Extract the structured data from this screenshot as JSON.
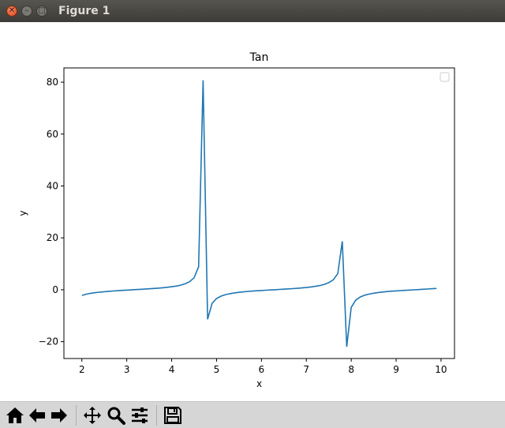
{
  "window": {
    "title": "Figure 1"
  },
  "toolbar": {
    "tools": [
      {
        "name": "home-icon"
      },
      {
        "name": "back-icon"
      },
      {
        "name": "forward-icon"
      },
      {
        "name": "pan-icon"
      },
      {
        "name": "zoom-icon"
      },
      {
        "name": "subplots-icon"
      },
      {
        "name": "save-icon"
      }
    ]
  },
  "chart_data": {
    "type": "line",
    "title": "Tan",
    "xlabel": "x",
    "ylabel": "y",
    "xlim": [
      1.6,
      10.3
    ],
    "ylim": [
      -26.5,
      85.5
    ],
    "xticks": [
      2,
      3,
      4,
      5,
      6,
      7,
      8,
      9,
      10
    ],
    "yticks": [
      -20,
      0,
      20,
      40,
      60,
      80
    ],
    "xtick_labels": [
      "2",
      "3",
      "4",
      "5",
      "6",
      "7",
      "8",
      "9",
      "10"
    ],
    "ytick_labels": [
      "−20",
      "0",
      "20",
      "40",
      "60",
      "80"
    ],
    "grid": false,
    "legend": "top-right (empty)",
    "series": [
      {
        "color": "#1f77b4",
        "x": [
          2.0,
          2.1,
          2.2,
          2.3,
          2.4,
          2.5,
          2.6,
          2.7,
          2.8,
          2.9,
          3.0,
          3.1,
          3.2,
          3.3,
          3.4,
          3.5,
          3.6,
          3.7,
          3.8,
          3.9,
          4.0,
          4.1,
          4.2,
          4.3,
          4.4,
          4.5,
          4.6,
          4.7,
          4.8,
          4.9,
          5.0,
          5.1,
          5.2,
          5.3,
          5.4,
          5.5,
          5.6,
          5.7,
          5.8,
          5.9,
          6.0,
          6.1,
          6.2,
          6.3,
          6.4,
          6.5,
          6.6,
          6.7,
          6.8,
          6.9,
          7.0,
          7.1,
          7.2,
          7.3,
          7.4,
          7.5,
          7.6,
          7.7,
          7.8,
          7.9,
          8.0,
          8.1,
          8.2,
          8.3,
          8.4,
          8.5,
          8.6,
          8.7,
          8.8,
          8.9,
          9.0,
          9.1,
          9.2,
          9.3,
          9.4,
          9.5,
          9.6,
          9.7,
          9.8,
          9.9
        ],
        "y": [
          -2.19,
          -1.71,
          -1.37,
          -1.12,
          -0.92,
          -0.75,
          -0.6,
          -0.47,
          -0.36,
          -0.24,
          -0.14,
          -0.04,
          0.06,
          0.16,
          0.26,
          0.37,
          0.49,
          0.62,
          0.77,
          0.95,
          1.16,
          1.42,
          1.77,
          2.29,
          3.1,
          4.64,
          8.86,
          80.71,
          -11.38,
          -5.27,
          -3.38,
          -2.45,
          -1.89,
          -1.5,
          -1.21,
          -0.99,
          -0.8,
          -0.64,
          -0.5,
          -0.38,
          -0.29,
          -0.18,
          -0.08,
          0.02,
          0.12,
          0.22,
          0.33,
          0.44,
          0.57,
          0.71,
          0.87,
          1.06,
          1.31,
          1.63,
          2.08,
          2.75,
          3.85,
          6.23,
          18.68,
          -21.98,
          -6.8,
          -4.0,
          -2.79,
          -2.1,
          -1.65,
          -1.32,
          -1.07,
          -0.86,
          -0.7,
          -0.55,
          -0.45,
          -0.33,
          -0.22,
          -0.12,
          -0.02,
          0.08,
          0.18,
          0.28,
          0.39,
          0.51
        ]
      }
    ]
  }
}
